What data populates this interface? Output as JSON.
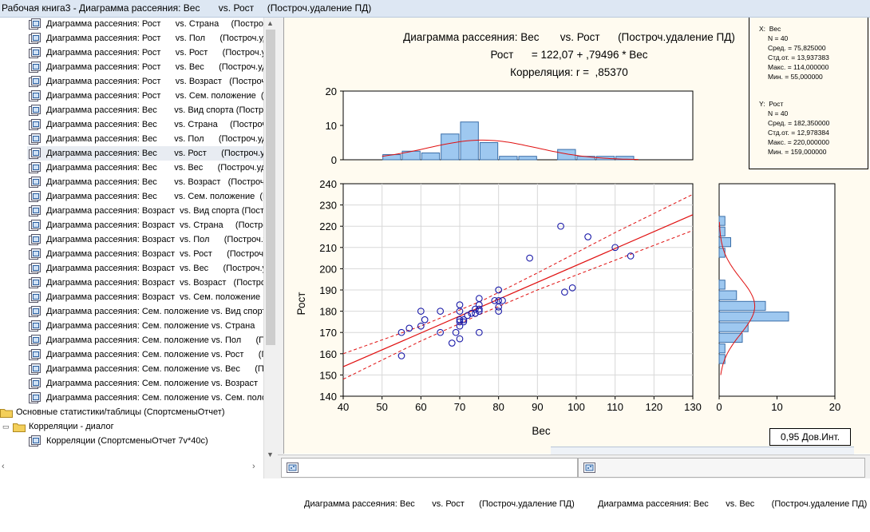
{
  "window": {
    "title": "Рабочая книга3 - Диаграмма рассеяния: Вес       vs. Рост     (Построч.удаление ПД)"
  },
  "tree": {
    "items": [
      "Диаграмма рассеяния: Рост      vs. Страна     (Построч.",
      "Диаграмма рассеяния: Рост      vs. Пол      (Построч.уд",
      "Диаграмма рассеяния: Рост      vs. Рост      (Построч.уд",
      "Диаграмма рассеяния: Рост      vs. Вес      (Построч.уд",
      "Диаграмма рассеяния: Рост      vs. Возраст   (Построч.у",
      "Диаграмма рассеяния: Рост      vs. Сем. положение  (По",
      "Диаграмма рассеяния: Вес       vs. Вид спорта (Построч",
      "Диаграмма рассеяния: Вес       vs. Страна     (Построч.",
      "Диаграмма рассеяния: Вес       vs. Пол      (Построч.уд",
      "Диаграмма рассеяния: Вес       vs. Рост      (Построч.уд",
      "Диаграмма рассеяния: Вес       vs. Вес      (Построч.уд",
      "Диаграмма рассеяния: Вес       vs. Возраст   (Построч.у",
      "Диаграмма рассеяния: Вес       vs. Сем. положение  (По",
      "Диаграмма рассеяния: Возраст  vs. Вид спорта (Построч",
      "Диаграмма рассеяния: Возраст  vs. Страна     (Построч.",
      "Диаграмма рассеяния: Возраст  vs. Пол      (Построч.уд",
      "Диаграмма рассеяния: Возраст  vs. Рост      (Построч.уд",
      "Диаграмма рассеяния: Возраст  vs. Вес      (Построч.уд",
      "Диаграмма рассеяния: Возраст  vs. Возраст   (Построч.у",
      "Диаграмма рассеяния: Возраст  vs. Сем. положение  (По",
      "Диаграмма рассеяния: Сем. положение vs. Вид спорта (П",
      "Диаграмма рассеяния: Сем. положение vs. Страна     (По",
      "Диаграмма рассеяния: Сем. положение vs. Пол      (Постр",
      "Диаграмма рассеяния: Сем. положение vs. Рост      (Постр",
      "Диаграмма рассеяния: Сем. положение vs. Вес      (Постр",
      "Диаграмма рассеяния: Сем. положение vs. Возраст   (Пост",
      "Диаграмма рассеяния: Сем. положение vs. Сем. положени"
    ],
    "selected_index": 9,
    "folders": [
      "Основные статистики/таблицы (СпортсменыОтчет)",
      "Корреляции - диалог"
    ],
    "leaf": "Корреляции (СпортсменыОтчет 7v*40c)"
  },
  "chart": {
    "title1": "Диаграмма рассеяния: Вес       vs. Рост      (Построч.удаление ПД)",
    "title2": "Рост      = 122,07 + ,79496 * Вес",
    "title3": "Корреляция: r =  ,85370"
  },
  "stats": {
    "x": [
      "X:  Вес",
      "N = 40",
      "Сред. = 75,825000",
      "Стд.от. = 13,937383",
      "Макс. = 114,000000",
      "Мин. = 55,000000"
    ],
    "y": [
      "Y:  Рост",
      "N = 40",
      "Сред. = 182,350000",
      "Стд.от. = 12,978384",
      "Макс. = 220,000000",
      "Мин. = 159,000000"
    ]
  },
  "confidence_label": "0,95 Дов.Инт.",
  "tabs": [
    "Диаграмма рассеяния: Вес       vs. Рост      (Построч.удаление ПД)",
    "Диаграмма рассеяния: Вес       vs. Вес       (Построч.удаление ПД)"
  ],
  "colors": {
    "point": "#1a1aa8",
    "fit_line": "#e01010",
    "bar_fill": "#9ec8f0",
    "background": "#fffbf0"
  },
  "chart_data": [
    {
      "type": "scatter",
      "xlabel": "Вес",
      "ylabel": "Рост",
      "xlim": [
        40,
        130
      ],
      "ylim": [
        140,
        240
      ],
      "xticks": [
        40,
        50,
        60,
        70,
        80,
        90,
        100,
        110,
        120,
        130
      ],
      "yticks": [
        140,
        150,
        160,
        170,
        180,
        190,
        200,
        210,
        220,
        230,
        240
      ],
      "grid": true,
      "points": [
        [
          96,
          220
        ],
        [
          103,
          215
        ],
        [
          110,
          210
        ],
        [
          114,
          206
        ],
        [
          88,
          205
        ],
        [
          99,
          191
        ],
        [
          97,
          189
        ],
        [
          80,
          190
        ],
        [
          75,
          186
        ],
        [
          80,
          185
        ],
        [
          81,
          185
        ],
        [
          79,
          185
        ],
        [
          70,
          183
        ],
        [
          75,
          183
        ],
        [
          80,
          182
        ],
        [
          74,
          181
        ],
        [
          75,
          181
        ],
        [
          60,
          180
        ],
        [
          65,
          180
        ],
        [
          70,
          180
        ],
        [
          75,
          180
        ],
        [
          80,
          180
        ],
        [
          73,
          179
        ],
        [
          74,
          179
        ],
        [
          72,
          178
        ],
        [
          61,
          176
        ],
        [
          70,
          176
        ],
        [
          71,
          176
        ],
        [
          70,
          175
        ],
        [
          71,
          175
        ],
        [
          60,
          173
        ],
        [
          70,
          173
        ],
        [
          57,
          172
        ],
        [
          55,
          170
        ],
        [
          65,
          170
        ],
        [
          69,
          170
        ],
        [
          75,
          170
        ],
        [
          70,
          167
        ],
        [
          68,
          165
        ],
        [
          55,
          159
        ]
      ],
      "regression": {
        "intercept": 122.07,
        "slope": 0.79496
      },
      "confidence_band": [
        {
          "x": 40,
          "lower": 148,
          "upper": 160
        },
        {
          "x": 60,
          "lower": 166,
          "upper": 173
        },
        {
          "x": 75.825,
          "lower": 179,
          "upper": 185
        },
        {
          "x": 90,
          "lower": 190,
          "upper": 198
        },
        {
          "x": 110,
          "lower": 204,
          "upper": 217
        },
        {
          "x": 130,
          "lower": 218,
          "upper": 235
        }
      ]
    },
    {
      "type": "bar",
      "name": "x-histogram",
      "bin_starts": [
        50,
        55,
        60,
        65,
        70,
        75,
        80,
        85,
        90,
        95,
        100,
        105,
        110
      ],
      "bin_width": 5,
      "values": [
        1.5,
        2.5,
        2,
        7.5,
        11,
        5,
        1,
        1,
        0,
        3,
        1,
        1,
        1
      ],
      "ylim": [
        0,
        20
      ],
      "yticks": [
        0,
        10,
        20
      ]
    },
    {
      "type": "bar",
      "name": "y-histogram",
      "bin_starts": [
        155,
        160,
        165,
        170,
        175,
        180,
        185,
        190,
        195,
        200,
        205,
        210,
        215,
        220
      ],
      "bin_width": 5,
      "values": [
        1,
        1,
        4,
        5,
        12,
        8,
        3,
        1,
        0,
        0,
        1,
        2,
        1,
        1
      ],
      "xlim": [
        0,
        20
      ],
      "xticks": [
        0,
        10,
        20
      ]
    }
  ]
}
